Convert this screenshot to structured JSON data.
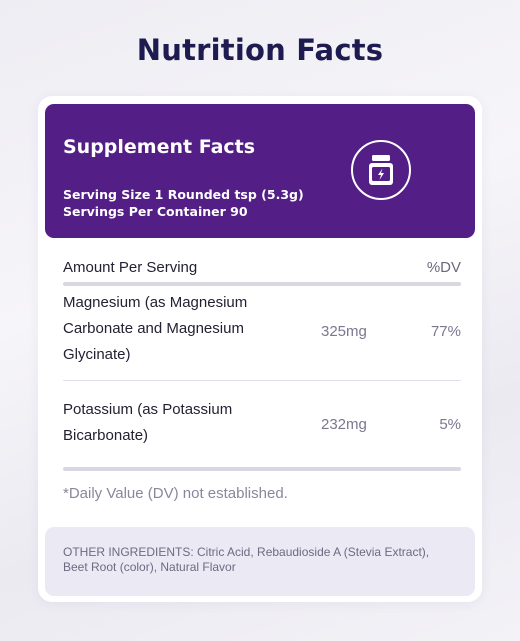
{
  "page": {
    "title": "Nutrition Facts"
  },
  "panel": {
    "title": "Supplement Facts",
    "serving_size": "Serving Size 1 Rounded tsp (5.3g)",
    "servings_per_container": "Servings Per Container 90",
    "icon": "supplement-jar-lightning-icon"
  },
  "table": {
    "header_left": "Amount Per Serving",
    "header_right": "%DV",
    "rows": [
      {
        "name": "Magnesium (as Magnesium Carbonate and Magnesium Glycinate)",
        "amount": "325mg",
        "dv": "77%"
      },
      {
        "name": "Potassium (as Potassium Bicarbonate)",
        "amount": "232mg",
        "dv": "5%"
      }
    ]
  },
  "footnote": "*Daily Value (DV) not established.",
  "ingredients": "OTHER INGREDIENTS: Citric Acid, Rebaudioside A (Stevia Extract), Beet Root (color), Natural Flavor",
  "colors": {
    "brand_purple": "#531e85",
    "title_navy": "#1d1b4f"
  }
}
